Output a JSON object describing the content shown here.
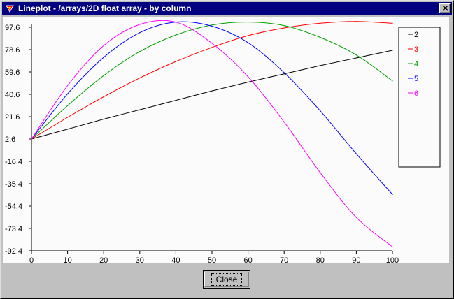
{
  "window": {
    "title": "Lineplot - /arrays/2D float array - by column"
  },
  "buttons": {
    "close_label": "Close"
  },
  "colors": {
    "title_bar": "#000080",
    "plot_background": "#fbfbfb",
    "series": [
      "#000000",
      "#ff0000",
      "#00a000",
      "#0000ff",
      "#ff00ff"
    ]
  },
  "icons": {
    "app": "red-triangle-icon",
    "close": "close-icon"
  },
  "chart_data": {
    "type": "line",
    "title": "",
    "xlabel": "",
    "ylabel": "",
    "xlim": [
      0,
      100
    ],
    "ylim": [
      -92.4,
      97.6
    ],
    "x_ticks": [
      0,
      10,
      20,
      30,
      40,
      50,
      60,
      70,
      80,
      90,
      100
    ],
    "y_ticks": [
      "97.6",
      "78.6",
      "59.6",
      "40.6",
      "21.6",
      "2.6",
      "-16.4",
      "-35.4",
      "-54.4",
      "-73.4",
      "-92.4"
    ],
    "legend_position": "right",
    "grid": false,
    "x": [
      0,
      10,
      20,
      30,
      40,
      50,
      60,
      70,
      80,
      90,
      100
    ],
    "series": [
      {
        "name": "2",
        "color": "#000000",
        "values": [
          2.6,
          11,
          19.5,
          27.5,
          35.5,
          43.5,
          51,
          58,
          65,
          71.5,
          78
        ]
      },
      {
        "name": "3",
        "color": "#ff0000",
        "values": [
          2.6,
          21,
          38.5,
          54.5,
          68.5,
          80.5,
          90.5,
          97,
          101,
          102.5,
          101
        ]
      },
      {
        "name": "4",
        "color": "#00a000",
        "values": [
          2.6,
          31,
          56.5,
          77,
          91,
          99.5,
          102,
          99,
          89,
          74,
          52
        ]
      },
      {
        "name": "5",
        "color": "#0000ff",
        "values": [
          2.6,
          41,
          72,
          93,
          102,
          98.5,
          84.5,
          59,
          26.5,
          -10,
          -44.5
        ]
      },
      {
        "name": "6",
        "color": "#ff00ff",
        "values": [
          2.6,
          48,
          82,
          100,
          102,
          84,
          55.5,
          17,
          -26,
          -64,
          -89
        ]
      }
    ]
  }
}
